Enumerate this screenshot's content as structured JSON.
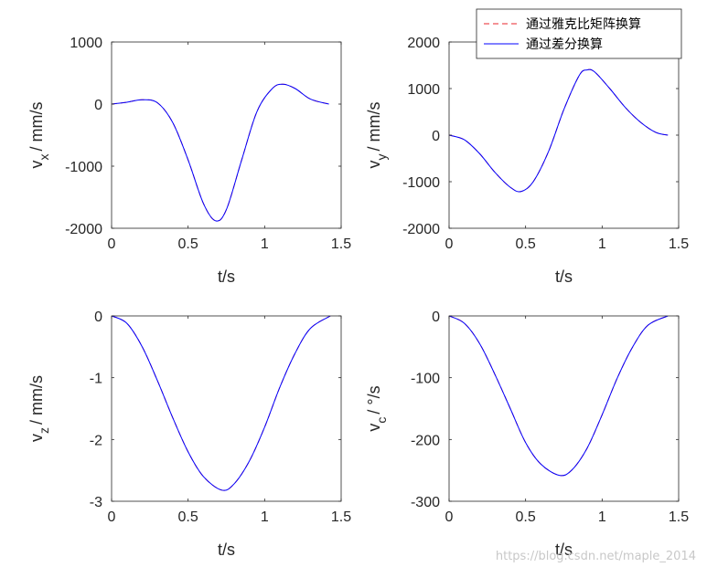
{
  "legend": {
    "entries": [
      {
        "label": "通过雅克比矩阵换算",
        "color": "#e8262b",
        "dash": true
      },
      {
        "label": "通过差分换算",
        "color": "#0000ff",
        "dash": false
      }
    ]
  },
  "watermark": "https://blog.csdn.net/maple_2014",
  "chart_data": [
    {
      "type": "line",
      "xlabel": "t/s",
      "ylabel": {
        "base": "v",
        "sub": "x",
        "rest": "/ mm/s"
      },
      "xlim": [
        0,
        1.5
      ],
      "ylim": [
        -2000,
        1000
      ],
      "xticks": [
        0,
        0.5,
        1,
        1.5
      ],
      "xtick_labels": [
        "0",
        "0.5",
        "1",
        "1.5"
      ],
      "yticks": [
        -2000,
        -1000,
        0,
        1000
      ],
      "ytick_labels": [
        "-2000",
        "-1000",
        "0",
        "1000"
      ],
      "x": [
        0,
        0.1,
        0.2,
        0.3,
        0.4,
        0.5,
        0.6,
        0.68,
        0.75,
        0.85,
        0.95,
        1.05,
        1.12,
        1.2,
        1.3,
        1.42
      ],
      "series": [
        {
          "values": [
            0,
            30,
            70,
            20,
            -300,
            -900,
            -1600,
            -1880,
            -1700,
            -900,
            -120,
            250,
            320,
            250,
            80,
            0
          ],
          "color": "#e8262b",
          "dash": true
        },
        {
          "values": [
            0,
            30,
            70,
            20,
            -300,
            -900,
            -1600,
            -1880,
            -1700,
            -900,
            -120,
            250,
            320,
            250,
            80,
            0
          ],
          "color": "#0000ff",
          "dash": false
        }
      ]
    },
    {
      "type": "line",
      "xlabel": "t/s",
      "ylabel": {
        "base": "v",
        "sub": "y",
        "rest": "/ mm/s"
      },
      "xlim": [
        0,
        1.5
      ],
      "ylim": [
        -2000,
        2000
      ],
      "xticks": [
        0,
        0.5,
        1,
        1.5
      ],
      "xtick_labels": [
        "0",
        "0.5",
        "1",
        "1.5"
      ],
      "yticks": [
        -2000,
        -1000,
        0,
        1000,
        2000
      ],
      "ytick_labels": [
        "-2000",
        "-1000",
        "0",
        "1000",
        "2000"
      ],
      "x": [
        0,
        0.1,
        0.2,
        0.3,
        0.4,
        0.47,
        0.55,
        0.65,
        0.75,
        0.85,
        0.9,
        0.95,
        1.05,
        1.15,
        1.25,
        1.35,
        1.43
      ],
      "series": [
        {
          "values": [
            0,
            -100,
            -400,
            -800,
            -1120,
            -1210,
            -1000,
            -350,
            550,
            1280,
            1400,
            1360,
            1000,
            600,
            280,
            60,
            0
          ],
          "color": "#e8262b",
          "dash": true
        },
        {
          "values": [
            0,
            -100,
            -400,
            -800,
            -1120,
            -1210,
            -1000,
            -350,
            550,
            1280,
            1400,
            1360,
            1000,
            600,
            280,
            60,
            0
          ],
          "color": "#0000ff",
          "dash": false
        }
      ]
    },
    {
      "type": "line",
      "xlabel": "t/s",
      "ylabel": {
        "base": "v",
        "sub": "z",
        "rest": "/ mm/s"
      },
      "xlim": [
        0,
        1.5
      ],
      "ylim": [
        -3,
        0
      ],
      "xticks": [
        0,
        0.5,
        1,
        1.5
      ],
      "xtick_labels": [
        "0",
        "0.5",
        "1",
        "1.5"
      ],
      "yticks": [
        -3,
        -2,
        -1,
        0
      ],
      "ytick_labels": [
        "-3",
        "-2",
        "-1",
        "0"
      ],
      "x": [
        0,
        0.1,
        0.2,
        0.3,
        0.4,
        0.5,
        0.6,
        0.72,
        0.8,
        0.9,
        1.0,
        1.1,
        1.2,
        1.3,
        1.43
      ],
      "series": [
        {
          "values": [
            0,
            -0.12,
            -0.5,
            -1.05,
            -1.65,
            -2.2,
            -2.6,
            -2.82,
            -2.72,
            -2.35,
            -1.8,
            -1.15,
            -0.6,
            -0.2,
            0
          ],
          "color": "#e8262b",
          "dash": true
        },
        {
          "values": [
            0,
            -0.12,
            -0.5,
            -1.05,
            -1.65,
            -2.2,
            -2.6,
            -2.82,
            -2.72,
            -2.35,
            -1.8,
            -1.15,
            -0.6,
            -0.2,
            0
          ],
          "color": "#0000ff",
          "dash": false
        }
      ]
    },
    {
      "type": "line",
      "xlabel": "t/s",
      "ylabel": {
        "base": "v",
        "sub": "c",
        "rest": "/ °/s"
      },
      "xlim": [
        0,
        1.5
      ],
      "ylim": [
        -300,
        0
      ],
      "xticks": [
        0,
        0.5,
        1,
        1.5
      ],
      "xtick_labels": [
        "0",
        "0.5",
        "1",
        "1.5"
      ],
      "yticks": [
        -300,
        -200,
        -100,
        0
      ],
      "ytick_labels": [
        "-300",
        "-200",
        "-100",
        "0"
      ],
      "x": [
        0,
        0.1,
        0.2,
        0.3,
        0.4,
        0.5,
        0.6,
        0.72,
        0.8,
        0.9,
        1.0,
        1.1,
        1.2,
        1.3,
        1.43
      ],
      "series": [
        {
          "values": [
            0,
            -12,
            -45,
            -95,
            -150,
            -205,
            -240,
            -258,
            -250,
            -215,
            -160,
            -100,
            -50,
            -15,
            0
          ],
          "color": "#e8262b",
          "dash": true
        },
        {
          "values": [
            0,
            -12,
            -45,
            -95,
            -150,
            -205,
            -240,
            -258,
            -250,
            -215,
            -160,
            -100,
            -50,
            -15,
            0
          ],
          "color": "#0000ff",
          "dash": false
        }
      ]
    }
  ]
}
